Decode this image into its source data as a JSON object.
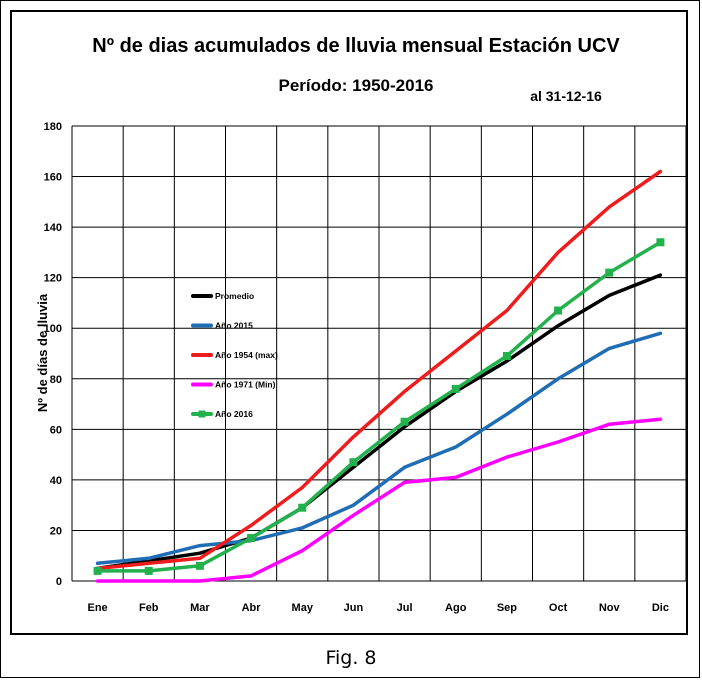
{
  "caption": "Fig. 8",
  "chart_data": {
    "type": "line",
    "title": "Nº de dias acumulados de lluvia mensual Estación UCV",
    "subtitle": "Período:  1950-2016",
    "note": "al 31-12-16",
    "ylabel": "Nº de días de lluvia",
    "xlabel": "",
    "ylim": [
      0,
      180
    ],
    "yticks": [
      0,
      20,
      40,
      60,
      80,
      100,
      120,
      140,
      160,
      180
    ],
    "grid": true,
    "legend_position": "left-middle",
    "categories": [
      "Ene",
      "Feb",
      "Mar",
      "Abr",
      "May",
      "Jun",
      "Jul",
      "Ago",
      "Sep",
      "Oct",
      "Nov",
      "Dic"
    ],
    "series": [
      {
        "name": "Promedio",
        "color": "#000000",
        "marker": "none",
        "values": [
          5,
          8,
          11,
          17,
          29,
          45,
          61,
          75,
          87,
          101,
          113,
          121
        ]
      },
      {
        "name": "Año 2015",
        "color": "#1f6eb5",
        "marker": "none",
        "values": [
          7,
          9,
          14,
          16,
          21,
          30,
          45,
          53,
          66,
          80,
          92,
          98
        ]
      },
      {
        "name": "Año 1954 (max)",
        "color": "#ee1c1c",
        "marker": "none",
        "values": [
          5,
          7,
          9,
          22,
          37,
          57,
          75,
          91,
          107,
          130,
          148,
          162
        ]
      },
      {
        "name": "Año 1971 (Min)",
        "color": "#ff00ff",
        "marker": "none",
        "values": [
          0,
          0,
          0,
          2,
          12,
          26,
          39,
          41,
          49,
          55,
          62,
          64
        ]
      },
      {
        "name": "Año 2016",
        "color": "#22b14c",
        "marker": "square",
        "values": [
          4,
          4,
          6,
          17,
          29,
          47,
          63,
          76,
          89,
          107,
          122,
          134
        ]
      }
    ]
  }
}
